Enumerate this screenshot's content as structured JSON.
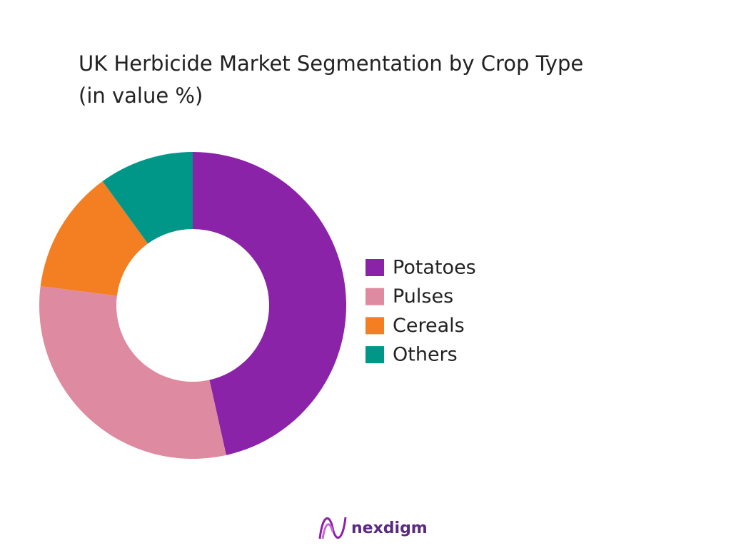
{
  "chart_data": {
    "type": "donut",
    "title": "UK Herbicide Market Segmentation by Crop Type",
    "subtitle": "(in value %)",
    "categories": [
      "Potatoes",
      "Pulses",
      "Cereals",
      "Others"
    ],
    "values": [
      46.5,
      30.5,
      13,
      10
    ],
    "colors": [
      "#8b23a8",
      "#de8aa0",
      "#f47f22",
      "#009688"
    ],
    "legend": "right"
  },
  "brand": "nexdigm"
}
